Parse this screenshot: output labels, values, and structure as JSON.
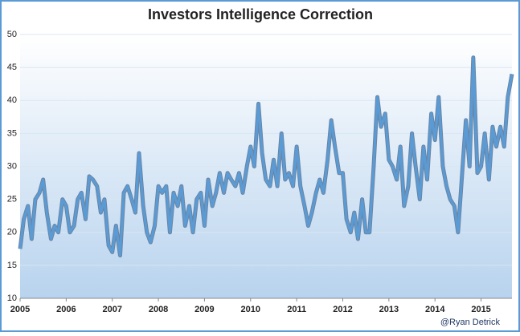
{
  "chart_data": {
    "type": "line",
    "title": "Investors Intelligence Correction",
    "annotation": "@Ryan Detrick",
    "x": [
      2005,
      2005.08,
      2005.17,
      2005.25,
      2005.33,
      2005.42,
      2005.5,
      2005.58,
      2005.67,
      2005.75,
      2005.83,
      2005.92,
      2006,
      2006.08,
      2006.17,
      2006.25,
      2006.33,
      2006.42,
      2006.5,
      2006.58,
      2006.67,
      2006.75,
      2006.83,
      2006.92,
      2007,
      2007.08,
      2007.17,
      2007.25,
      2007.33,
      2007.42,
      2007.5,
      2007.58,
      2007.67,
      2007.75,
      2007.83,
      2007.92,
      2008,
      2008.08,
      2008.17,
      2008.25,
      2008.33,
      2008.42,
      2008.5,
      2008.58,
      2008.67,
      2008.75,
      2008.83,
      2008.92,
      2009,
      2009.08,
      2009.17,
      2009.25,
      2009.33,
      2009.42,
      2009.5,
      2009.58,
      2009.67,
      2009.75,
      2009.83,
      2009.92,
      2010,
      2010.08,
      2010.17,
      2010.25,
      2010.33,
      2010.42,
      2010.5,
      2010.58,
      2010.67,
      2010.75,
      2010.83,
      2010.92,
      2011,
      2011.08,
      2011.17,
      2011.25,
      2011.33,
      2011.42,
      2011.5,
      2011.58,
      2011.67,
      2011.75,
      2011.83,
      2011.92,
      2012,
      2012.08,
      2012.17,
      2012.25,
      2012.33,
      2012.42,
      2012.5,
      2012.58,
      2012.67,
      2012.75,
      2012.83,
      2012.92,
      2013,
      2013.08,
      2013.17,
      2013.25,
      2013.33,
      2013.42,
      2013.5,
      2013.58,
      2013.67,
      2013.75,
      2013.83,
      2013.92,
      2014,
      2014.08,
      2014.17,
      2014.25,
      2014.33,
      2014.42,
      2014.5,
      2014.58,
      2014.67,
      2014.75,
      2014.83,
      2014.92,
      2015,
      2015.08,
      2015.17,
      2015.25,
      2015.33,
      2015.42,
      2015.5,
      2015.58,
      2015.67
    ],
    "series": [
      {
        "name": "Investors Intelligence Correction",
        "color": "#5b9bd5",
        "values": [
          17.5,
          22,
          24,
          19,
          25,
          26,
          28,
          23,
          19,
          21,
          20,
          25,
          24,
          20,
          21,
          25,
          26,
          22,
          28.5,
          28,
          27,
          23,
          25,
          18,
          17,
          21,
          16.5,
          26,
          27,
          25,
          23,
          32,
          24,
          20,
          18.5,
          21,
          27,
          26,
          27,
          20,
          26,
          24,
          27,
          21,
          24,
          20,
          25,
          26,
          21,
          28,
          24,
          26,
          29,
          26,
          29,
          28,
          27,
          29,
          26,
          30,
          33,
          30,
          39.5,
          32,
          28,
          27,
          31,
          27,
          35,
          28,
          29,
          27,
          33,
          27,
          24,
          21,
          23,
          26,
          28,
          26,
          31,
          37,
          33,
          29,
          29,
          22,
          20,
          23,
          19,
          25,
          20,
          20,
          30,
          40.5,
          36,
          38,
          31,
          30,
          28,
          33,
          24,
          27,
          35,
          30,
          25,
          33,
          28,
          38,
          34,
          40.5,
          30,
          27,
          25,
          24,
          20,
          28,
          37,
          30,
          46.5,
          29,
          30,
          35,
          28,
          36,
          33,
          36,
          33,
          40.5,
          44
        ]
      }
    ],
    "xlim": [
      2005,
      2015.67
    ],
    "xticks": [
      2005,
      2006,
      2007,
      2008,
      2009,
      2010,
      2011,
      2012,
      2013,
      2014,
      2015
    ],
    "ylim": [
      10,
      50
    ],
    "yticks": [
      10,
      15,
      20,
      25,
      30,
      35,
      40,
      45,
      50
    ],
    "grid": true
  }
}
